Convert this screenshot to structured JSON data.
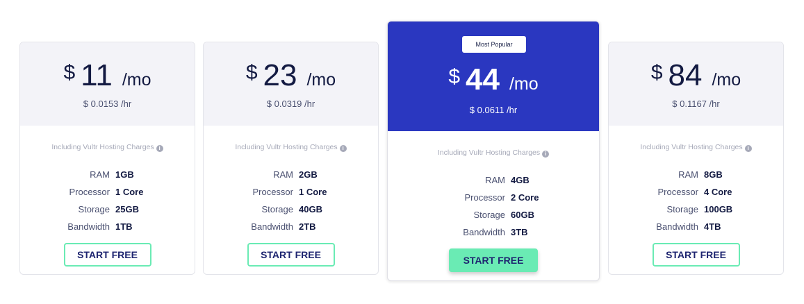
{
  "info_icon": "info-circle-icon",
  "colors": {
    "accent": "#2a37c0",
    "button": "#6aebb4",
    "header_bg": "#f3f3f8"
  },
  "plans": [
    {
      "currency": "$",
      "amount": "11",
      "period": "/mo",
      "hourly": "$ 0.0153 /hr",
      "note": "Including Vultr Hosting Charges",
      "specs": [
        {
          "label": "RAM",
          "value": "1GB"
        },
        {
          "label": "Processor",
          "value": "1 Core"
        },
        {
          "label": "Storage",
          "value": "25GB"
        },
        {
          "label": "Bandwidth",
          "value": "1TB"
        }
      ],
      "button": "START FREE"
    },
    {
      "currency": "$",
      "amount": "23",
      "period": "/mo",
      "hourly": "$ 0.0319 /hr",
      "note": "Including Vultr Hosting Charges",
      "specs": [
        {
          "label": "RAM",
          "value": "2GB"
        },
        {
          "label": "Processor",
          "value": "1 Core"
        },
        {
          "label": "Storage",
          "value": "40GB"
        },
        {
          "label": "Bandwidth",
          "value": "2TB"
        }
      ],
      "button": "START FREE"
    },
    {
      "badge": "Most Popular",
      "currency": "$",
      "amount": "44",
      "period": "/mo",
      "hourly": "$ 0.0611 /hr",
      "note": "Including Vultr Hosting Charges",
      "specs": [
        {
          "label": "RAM",
          "value": "4GB"
        },
        {
          "label": "Processor",
          "value": "2 Core"
        },
        {
          "label": "Storage",
          "value": "60GB"
        },
        {
          "label": "Bandwidth",
          "value": "3TB"
        }
      ],
      "button": "START FREE"
    },
    {
      "currency": "$",
      "amount": "84",
      "period": "/mo",
      "hourly": "$ 0.1167 /hr",
      "note": "Including Vultr Hosting Charges",
      "specs": [
        {
          "label": "RAM",
          "value": "8GB"
        },
        {
          "label": "Processor",
          "value": "4 Core"
        },
        {
          "label": "Storage",
          "value": "100GB"
        },
        {
          "label": "Bandwidth",
          "value": "4TB"
        }
      ],
      "button": "START FREE"
    }
  ]
}
